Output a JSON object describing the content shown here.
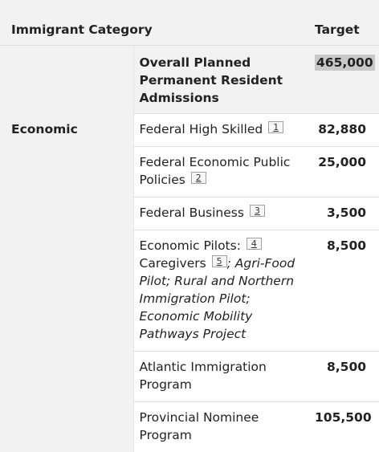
{
  "header": {
    "category": "Immigrant Category",
    "target": "Target"
  },
  "overall": {
    "label": "Overall Planned Permanent Resident Admissions",
    "value": "465,000"
  },
  "economic": {
    "category": "Economic",
    "rows": [
      {
        "name": "Federal High Skilled",
        "ref": "1",
        "value": "82,880"
      },
      {
        "name": "Federal Economic Public Policies",
        "ref": "2",
        "value": "25,000"
      },
      {
        "name": "Federal Business",
        "ref": "3",
        "value": "3,500"
      },
      {
        "name_a": "Economic Pilots:",
        "ref_a": "4",
        "name_b": "Caregivers",
        "ref_b": "5",
        "name_c": "; Agri-Food Pilot; Rural and Northern Immigration Pilot; Economic Mobility Pathways Project",
        "value": "8,500"
      },
      {
        "name": "Atlantic Immigration Program",
        "value": "8,500"
      },
      {
        "name": "Provincial Nominee Program",
        "value": "105,500"
      }
    ]
  }
}
